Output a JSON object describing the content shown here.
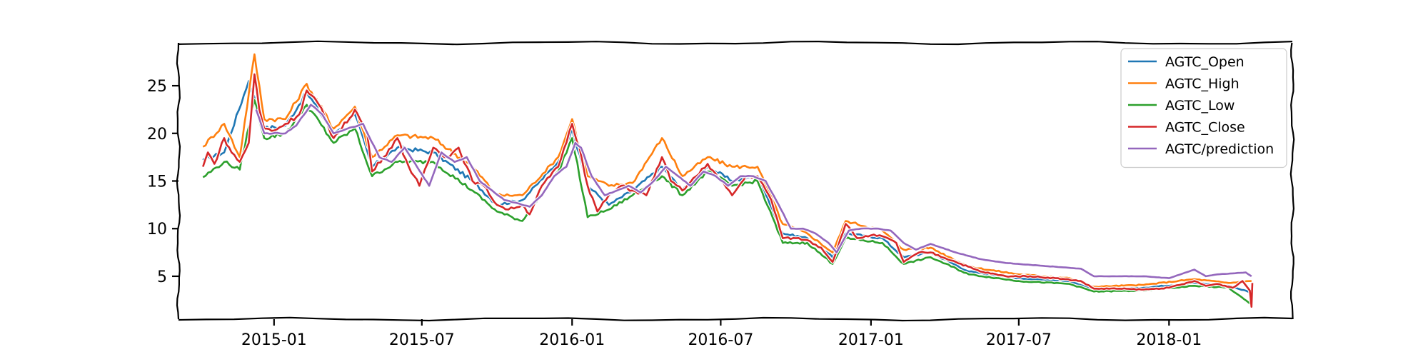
{
  "chart_data": {
    "type": "line",
    "title": "",
    "xlabel": "",
    "ylabel": "",
    "x_range": [
      "2014-09-06",
      "2018-06-01"
    ],
    "ylim": [
      0.5,
      29.5
    ],
    "x_ticks": [
      {
        "date": "2015-01-01",
        "label": "2015-01"
      },
      {
        "date": "2015-07-01",
        "label": "2015-07"
      },
      {
        "date": "2016-01-01",
        "label": "2016-01"
      },
      {
        "date": "2016-07-01",
        "label": "2016-07"
      },
      {
        "date": "2017-01-01",
        "label": "2017-01"
      },
      {
        "date": "2017-07-01",
        "label": "2017-07"
      },
      {
        "date": "2018-01-01",
        "label": "2018-01"
      }
    ],
    "y_ticks": [
      5,
      10,
      15,
      20,
      25
    ],
    "grid": false,
    "legend_position": "top-right",
    "series": [
      {
        "name": "AGTC_Open",
        "color": "#1f77b4",
        "points": [
          [
            "2014-10-06",
            17.2
          ],
          [
            "2014-11-01",
            18.0
          ],
          [
            "2014-12-01",
            25.5
          ],
          [
            "2014-12-20",
            20.5
          ],
          [
            "2015-01-15",
            20.8
          ],
          [
            "2015-02-10",
            24.3
          ],
          [
            "2015-03-15",
            20.0
          ],
          [
            "2015-04-10",
            22.0
          ],
          [
            "2015-05-01",
            16.5
          ],
          [
            "2015-06-01",
            18.5
          ],
          [
            "2015-07-15",
            18.0
          ],
          [
            "2015-09-01",
            15.0
          ],
          [
            "2015-10-01",
            12.5
          ],
          [
            "2015-11-01",
            13.0
          ],
          [
            "2015-12-15",
            17.0
          ],
          [
            "2016-01-01",
            20.5
          ],
          [
            "2016-01-20",
            14.5
          ],
          [
            "2016-02-15",
            12.5
          ],
          [
            "2016-03-15",
            14.0
          ],
          [
            "2016-04-20",
            16.5
          ],
          [
            "2016-05-15",
            14.0
          ],
          [
            "2016-06-15",
            16.5
          ],
          [
            "2016-07-15",
            15.0
          ],
          [
            "2016-08-15",
            15.5
          ],
          [
            "2016-09-15",
            9.5
          ],
          [
            "2016-10-15",
            9.0
          ],
          [
            "2016-11-15",
            7.0
          ],
          [
            "2016-12-01",
            9.5
          ],
          [
            "2017-01-15",
            9.0
          ],
          [
            "2017-02-10",
            7.0
          ],
          [
            "2017-03-15",
            7.5
          ],
          [
            "2017-05-01",
            5.5
          ],
          [
            "2017-07-01",
            4.8
          ],
          [
            "2017-09-01",
            4.5
          ],
          [
            "2017-10-01",
            3.6
          ],
          [
            "2017-12-01",
            3.8
          ],
          [
            "2018-02-01",
            4.3
          ],
          [
            "2018-03-15",
            4.0
          ],
          [
            "2018-04-12",
            3.3
          ]
        ]
      },
      {
        "name": "AGTC_High",
        "color": "#ff7f0e",
        "points": [
          [
            "2014-10-06",
            18.6
          ],
          [
            "2014-11-01",
            21.0
          ],
          [
            "2014-11-20",
            17.5
          ],
          [
            "2014-12-08",
            28.3
          ],
          [
            "2014-12-20",
            21.5
          ],
          [
            "2015-01-15",
            21.5
          ],
          [
            "2015-02-10",
            25.2
          ],
          [
            "2015-03-15",
            20.5
          ],
          [
            "2015-04-10",
            22.8
          ],
          [
            "2015-05-01",
            17.5
          ],
          [
            "2015-06-01",
            19.8
          ],
          [
            "2015-07-15",
            19.5
          ],
          [
            "2015-09-01",
            16.5
          ],
          [
            "2015-10-01",
            13.5
          ],
          [
            "2015-11-01",
            13.5
          ],
          [
            "2015-12-15",
            17.5
          ],
          [
            "2016-01-01",
            21.5
          ],
          [
            "2016-01-20",
            15.5
          ],
          [
            "2016-02-15",
            14.5
          ],
          [
            "2016-03-15",
            14.8
          ],
          [
            "2016-04-20",
            19.5
          ],
          [
            "2016-05-15",
            15.5
          ],
          [
            "2016-06-15",
            17.5
          ],
          [
            "2016-07-15",
            16.5
          ],
          [
            "2016-08-15",
            16.5
          ],
          [
            "2016-09-15",
            10.5
          ],
          [
            "2016-10-15",
            9.5
          ],
          [
            "2016-11-15",
            7.5
          ],
          [
            "2016-12-01",
            10.8
          ],
          [
            "2017-01-15",
            9.8
          ],
          [
            "2017-02-10",
            7.8
          ],
          [
            "2017-03-15",
            8.0
          ],
          [
            "2017-05-01",
            6.0
          ],
          [
            "2017-07-01",
            5.2
          ],
          [
            "2017-09-01",
            4.8
          ],
          [
            "2017-10-01",
            3.9
          ],
          [
            "2017-12-01",
            4.1
          ],
          [
            "2018-02-01",
            4.7
          ],
          [
            "2018-03-15",
            4.3
          ],
          [
            "2018-04-12",
            4.5
          ]
        ]
      },
      {
        "name": "AGTC_Low",
        "color": "#2ca02c",
        "points": [
          [
            "2014-10-06",
            15.4
          ],
          [
            "2014-11-01",
            17.0
          ],
          [
            "2014-11-20",
            16.2
          ],
          [
            "2014-12-08",
            23.5
          ],
          [
            "2014-12-20",
            19.5
          ],
          [
            "2015-01-15",
            20.0
          ],
          [
            "2015-02-10",
            23.0
          ],
          [
            "2015-03-15",
            19.0
          ],
          [
            "2015-04-10",
            20.5
          ],
          [
            "2015-05-01",
            15.5
          ],
          [
            "2015-06-01",
            17.0
          ],
          [
            "2015-07-15",
            17.0
          ],
          [
            "2015-09-01",
            14.0
          ],
          [
            "2015-10-01",
            11.8
          ],
          [
            "2015-11-01",
            10.8
          ],
          [
            "2015-12-15",
            16.0
          ],
          [
            "2016-01-01",
            19.5
          ],
          [
            "2016-01-20",
            11.2
          ],
          [
            "2016-02-15",
            12.0
          ],
          [
            "2016-03-15",
            13.5
          ],
          [
            "2016-04-20",
            15.5
          ],
          [
            "2016-05-15",
            13.5
          ],
          [
            "2016-06-15",
            16.0
          ],
          [
            "2016-07-15",
            14.5
          ],
          [
            "2016-08-15",
            15.0
          ],
          [
            "2016-09-15",
            8.5
          ],
          [
            "2016-10-15",
            8.5
          ],
          [
            "2016-11-15",
            6.3
          ],
          [
            "2016-12-01",
            9.0
          ],
          [
            "2017-01-15",
            8.5
          ],
          [
            "2017-02-10",
            6.3
          ],
          [
            "2017-03-15",
            7.0
          ],
          [
            "2017-05-01",
            5.2
          ],
          [
            "2017-07-01",
            4.5
          ],
          [
            "2017-09-01",
            4.2
          ],
          [
            "2017-10-01",
            3.4
          ],
          [
            "2017-12-01",
            3.5
          ],
          [
            "2018-02-01",
            4.0
          ],
          [
            "2018-03-15",
            3.8
          ],
          [
            "2018-04-12",
            2.0
          ]
        ]
      },
      {
        "name": "AGTC_Close",
        "color": "#d62728",
        "points": [
          [
            "2014-10-06",
            16.5
          ],
          [
            "2014-10-12",
            18.0
          ],
          [
            "2014-10-20",
            16.8
          ],
          [
            "2014-11-01",
            19.5
          ],
          [
            "2014-11-10",
            18.0
          ],
          [
            "2014-11-20",
            17.0
          ],
          [
            "2014-12-01",
            19.0
          ],
          [
            "2014-12-08",
            26.2
          ],
          [
            "2014-12-14",
            22.5
          ],
          [
            "2014-12-20",
            20.5
          ],
          [
            "2015-01-01",
            20.3
          ],
          [
            "2015-01-15",
            21.0
          ],
          [
            "2015-02-01",
            22.0
          ],
          [
            "2015-02-10",
            24.5
          ],
          [
            "2015-02-25",
            23.0
          ],
          [
            "2015-03-15",
            19.5
          ],
          [
            "2015-03-25",
            20.5
          ],
          [
            "2015-04-10",
            22.5
          ],
          [
            "2015-04-25",
            20.0
          ],
          [
            "2015-05-01",
            16.0
          ],
          [
            "2015-05-15",
            17.5
          ],
          [
            "2015-06-01",
            19.5
          ],
          [
            "2015-06-15",
            16.5
          ],
          [
            "2015-06-28",
            14.5
          ],
          [
            "2015-07-15",
            18.5
          ],
          [
            "2015-08-01",
            17.5
          ],
          [
            "2015-08-15",
            18.5
          ],
          [
            "2015-09-01",
            15.0
          ],
          [
            "2015-09-15",
            14.5
          ],
          [
            "2015-10-01",
            12.5
          ],
          [
            "2015-10-15",
            12.0
          ],
          [
            "2015-11-01",
            12.5
          ],
          [
            "2015-11-10",
            11.5
          ],
          [
            "2015-11-25",
            14.5
          ],
          [
            "2015-12-15",
            16.5
          ],
          [
            "2016-01-01",
            21.0
          ],
          [
            "2016-01-10",
            18.5
          ],
          [
            "2016-01-20",
            14.5
          ],
          [
            "2016-02-01",
            11.8
          ],
          [
            "2016-02-15",
            13.5
          ],
          [
            "2016-03-01",
            14.5
          ],
          [
            "2016-03-15",
            14.0
          ],
          [
            "2016-04-01",
            13.5
          ],
          [
            "2016-04-20",
            17.5
          ],
          [
            "2016-05-01",
            15.0
          ],
          [
            "2016-05-15",
            14.0
          ],
          [
            "2016-06-01",
            15.5
          ],
          [
            "2016-06-15",
            16.8
          ],
          [
            "2016-07-01",
            15.0
          ],
          [
            "2016-07-15",
            13.5
          ],
          [
            "2016-08-01",
            15.5
          ],
          [
            "2016-08-15",
            15.5
          ],
          [
            "2016-09-01",
            13.0
          ],
          [
            "2016-09-15",
            9.0
          ],
          [
            "2016-10-01",
            9.0
          ],
          [
            "2016-10-15",
            8.8
          ],
          [
            "2016-11-01",
            8.0
          ],
          [
            "2016-11-15",
            6.5
          ],
          [
            "2016-12-01",
            10.5
          ],
          [
            "2016-12-15",
            9.0
          ],
          [
            "2017-01-01",
            9.3
          ],
          [
            "2017-01-15",
            9.2
          ],
          [
            "2017-02-01",
            8.5
          ],
          [
            "2017-02-10",
            6.5
          ],
          [
            "2017-03-01",
            7.5
          ],
          [
            "2017-03-15",
            7.5
          ],
          [
            "2017-04-15",
            6.5
          ],
          [
            "2017-05-15",
            5.5
          ],
          [
            "2017-06-15",
            5.0
          ],
          [
            "2017-07-15",
            5.0
          ],
          [
            "2017-08-15",
            4.8
          ],
          [
            "2017-09-15",
            4.5
          ],
          [
            "2017-10-01",
            3.7
          ],
          [
            "2017-11-01",
            3.7
          ],
          [
            "2017-12-01",
            3.6
          ],
          [
            "2018-01-01",
            3.8
          ],
          [
            "2018-02-01",
            4.5
          ],
          [
            "2018-02-15",
            4.0
          ],
          [
            "2018-03-01",
            4.2
          ],
          [
            "2018-03-20",
            3.8
          ],
          [
            "2018-04-01",
            4.5
          ],
          [
            "2018-04-10",
            3.5
          ],
          [
            "2018-04-12",
            1.8
          ],
          [
            "2018-04-13",
            4.3
          ]
        ]
      },
      {
        "name": "AGTC/prediction",
        "color": "#9467bd",
        "points": [
          [
            "2014-12-10",
            22.5
          ],
          [
            "2014-12-20",
            20.0
          ],
          [
            "2015-01-15",
            20.0
          ],
          [
            "2015-01-28",
            20.8
          ],
          [
            "2015-02-15",
            23.0
          ],
          [
            "2015-03-01",
            22.0
          ],
          [
            "2015-03-15",
            20.0
          ],
          [
            "2015-04-01",
            20.5
          ],
          [
            "2015-04-20",
            21.0
          ],
          [
            "2015-05-10",
            17.5
          ],
          [
            "2015-05-25",
            17.0
          ],
          [
            "2015-06-10",
            18.5
          ],
          [
            "2015-06-25",
            16.5
          ],
          [
            "2015-07-10",
            14.5
          ],
          [
            "2015-07-25",
            18.0
          ],
          [
            "2015-08-10",
            17.0
          ],
          [
            "2015-08-25",
            17.5
          ],
          [
            "2015-09-10",
            15.0
          ],
          [
            "2015-09-25",
            14.0
          ],
          [
            "2015-10-10",
            13.0
          ],
          [
            "2015-10-25",
            12.7
          ],
          [
            "2015-11-10",
            12.3
          ],
          [
            "2015-11-25",
            13.5
          ],
          [
            "2015-12-10",
            15.5
          ],
          [
            "2015-12-25",
            16.5
          ],
          [
            "2016-01-05",
            19.0
          ],
          [
            "2016-01-12",
            18.5
          ],
          [
            "2016-01-25",
            15.5
          ],
          [
            "2016-02-10",
            13.5
          ],
          [
            "2016-02-25",
            14.0
          ],
          [
            "2016-03-10",
            14.5
          ],
          [
            "2016-03-25",
            13.8
          ],
          [
            "2016-04-10",
            15.0
          ],
          [
            "2016-04-25",
            16.5
          ],
          [
            "2016-05-10",
            15.5
          ],
          [
            "2016-05-25",
            14.5
          ],
          [
            "2016-06-10",
            16.0
          ],
          [
            "2016-06-25",
            15.5
          ],
          [
            "2016-07-10",
            14.5
          ],
          [
            "2016-07-25",
            15.5
          ],
          [
            "2016-08-10",
            15.5
          ],
          [
            "2016-08-25",
            15.0
          ],
          [
            "2016-09-10",
            12.5
          ],
          [
            "2016-09-25",
            10.0
          ],
          [
            "2016-10-10",
            10.0
          ],
          [
            "2016-10-25",
            9.5
          ],
          [
            "2016-11-10",
            8.5
          ],
          [
            "2016-11-20",
            7.5
          ],
          [
            "2016-12-05",
            9.8
          ],
          [
            "2016-12-20",
            10.0
          ],
          [
            "2017-01-10",
            10.0
          ],
          [
            "2017-01-25",
            9.8
          ],
          [
            "2017-02-10",
            8.5
          ],
          [
            "2017-02-25",
            7.8
          ],
          [
            "2017-03-15",
            8.4
          ],
          [
            "2017-04-15",
            7.5
          ],
          [
            "2017-05-15",
            6.8
          ],
          [
            "2017-06-15",
            6.4
          ],
          [
            "2017-07-15",
            6.2
          ],
          [
            "2017-08-15",
            6.0
          ],
          [
            "2017-09-15",
            5.8
          ],
          [
            "2017-10-01",
            5.0
          ],
          [
            "2017-11-01",
            5.0
          ],
          [
            "2017-12-01",
            5.0
          ],
          [
            "2018-01-01",
            4.8
          ],
          [
            "2018-02-01",
            5.7
          ],
          [
            "2018-02-15",
            5.0
          ],
          [
            "2018-03-01",
            5.2
          ],
          [
            "2018-03-20",
            5.3
          ],
          [
            "2018-04-05",
            5.4
          ],
          [
            "2018-04-12",
            5.0
          ]
        ]
      }
    ]
  }
}
